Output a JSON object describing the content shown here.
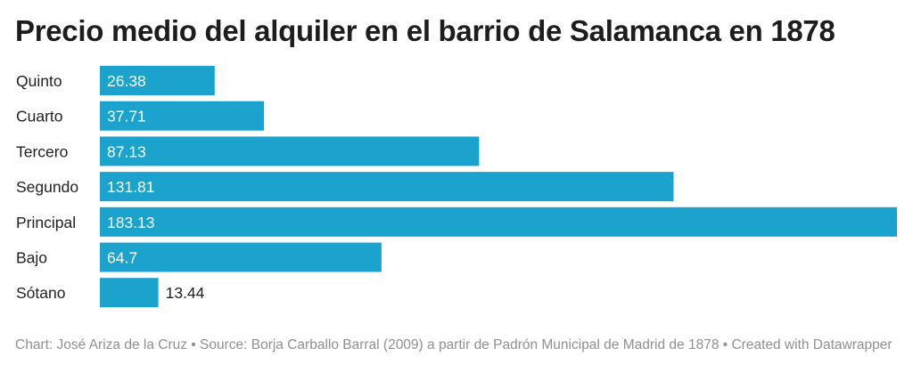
{
  "title": "Precio medio del alquiler en el barrio de Salamanca en 1878",
  "footer": {
    "text": "Chart: José Ariza de la Cruz • Source: Borja Carballo Barral (2009) a partir de Padrón Municipal de Madrid de 1878 • Created with Datawrapper"
  },
  "chart_data": {
    "type": "bar",
    "orientation": "horizontal",
    "title": "Precio medio del alquiler en el barrio de Salamanca en 1878",
    "categories": [
      "Quinto",
      "Cuarto",
      "Tercero",
      "Segundo",
      "Principal",
      "Bajo",
      "Sótano"
    ],
    "values": [
      26.38,
      37.71,
      87.13,
      131.81,
      183.13,
      64.7,
      13.44
    ],
    "value_labels": [
      "26.38",
      "37.71",
      "87.13",
      "131.81",
      "183.13",
      "64.7",
      "13.44"
    ],
    "xlim": [
      0,
      183.13
    ],
    "xlabel": "",
    "ylabel": "",
    "grid": false,
    "color": "#1ca3cd"
  }
}
